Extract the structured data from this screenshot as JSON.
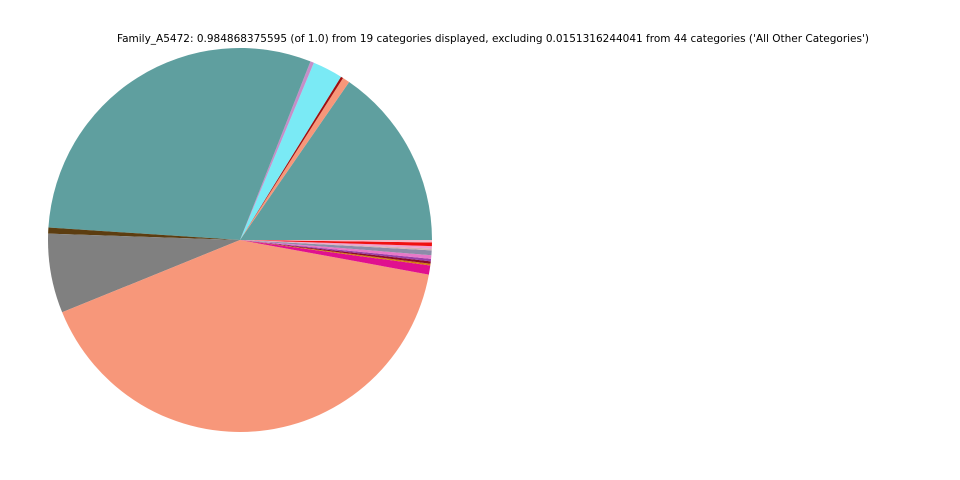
{
  "chart_data": {
    "type": "pie",
    "title": "Family_A5472: 0.984868375595 (of 1.0) from 19 categories displayed, excluding 0.0151316244041 from 44 categories ('All Other Categories')",
    "values": [
      0.152,
      0.006,
      0.002,
      0.025,
      0.003,
      0.296,
      0.005,
      0.066,
      0.405,
      0.0075,
      0.0015,
      0.002,
      0.002,
      0.003,
      0.004,
      0.0015,
      0.002,
      0.003,
      0.002
    ],
    "colors": [
      "#5f9f9f",
      "#f7977a",
      "#a01010",
      "#7aeaf5",
      "#c58ec8",
      "#5f9f9f",
      "#5c3d10",
      "#808080",
      "#f7977a",
      "#e0108f",
      "#d4800c",
      "#8b0a2a",
      "#9a3fa8",
      "#e878c8",
      "#8c8ca8",
      "#d8b0b8",
      "#f0a0d0",
      "#f01010",
      "#f4b8c8"
    ],
    "start_angle": 0,
    "counterclockwise": true
  }
}
